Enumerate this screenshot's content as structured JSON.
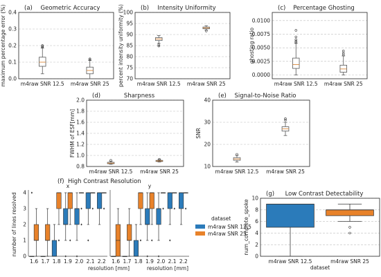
{
  "chart_data": [
    {
      "id": "a",
      "type": "box",
      "panel": "(a)",
      "title": "Geometric Accuracy",
      "ylabel": "maximum percentage error (%)",
      "categories": [
        "m4raw SNR 12.5",
        "m4raw SNR 25"
      ],
      "ylim": [
        0,
        0.4
      ],
      "yticks": [
        "0.0",
        "0.1",
        "0.2",
        "0.3",
        "0.4"
      ],
      "ytick_values": [
        0,
        0.1,
        0.2,
        0.3,
        0.4
      ],
      "box_color": "#ffffff",
      "boxes": [
        {
          "q1": 0.075,
          "median": 0.1,
          "q3": 0.13,
          "whislo": 0.03,
          "whishi": 0.185,
          "fliers": [
            0.19,
            0.195,
            0.2
          ]
        },
        {
          "q1": 0.03,
          "median": 0.05,
          "q3": 0.07,
          "whislo": 0.0,
          "whishi": 0.11,
          "fliers": [
            0.115,
            0.12
          ]
        }
      ]
    },
    {
      "id": "b",
      "type": "box",
      "panel": "(b)",
      "title": "Intensity Uniformity",
      "ylabel": "percent intensity uniformity (%)",
      "categories": [
        "m4raw SNR 12.5",
        "m4raw SNR 25"
      ],
      "ylim": [
        70,
        100
      ],
      "yticks": [
        "70",
        "75",
        "80",
        "85",
        "90",
        "95",
        "100"
      ],
      "ytick_values": [
        70,
        75,
        80,
        85,
        90,
        95,
        100
      ],
      "box_color": "#ffffff",
      "boxes": [
        {
          "q1": 87.3,
          "median": 88.0,
          "q3": 88.6,
          "whislo": 86.0,
          "whishi": 89.5,
          "fliers": [
            85.3,
            84.8
          ]
        },
        {
          "q1": 92.6,
          "median": 93.0,
          "q3": 93.4,
          "whislo": 92.0,
          "whishi": 94.0,
          "fliers": [
            91.6
          ]
        }
      ]
    },
    {
      "id": "c",
      "type": "box",
      "panel": "(c)",
      "title": "Percentage Ghosting",
      "ylabel": "ghosting ratio",
      "categories": [
        "m4raw SNR 12.5",
        "m4raw SNR 25"
      ],
      "ylim": [
        -0.0007,
        0.0115
      ],
      "yticks": [
        "0.0000",
        "0.0025",
        "0.0050",
        "0.0075",
        "0.0100"
      ],
      "ytick_values": [
        0,
        0.0025,
        0.005,
        0.0075,
        0.01
      ],
      "box_color": "#ffffff",
      "boxes": [
        {
          "q1": 0.0012,
          "median": 0.0019,
          "q3": 0.0031,
          "whislo": 0.0,
          "whishi": 0.0058,
          "fliers": [
            0.006,
            0.0062,
            0.0065,
            0.007,
            0.0082
          ]
        },
        {
          "q1": 0.0005,
          "median": 0.0011,
          "q3": 0.0018,
          "whislo": 0.0,
          "whishi": 0.0035,
          "fliers": [
            0.0037,
            0.004,
            0.0044
          ]
        }
      ]
    },
    {
      "id": "d",
      "type": "box",
      "panel": "(d)",
      "title": "Sharpness",
      "ylabel": "FWHM of ESF[mm]",
      "categories": [
        "m4raw SNR 12.5",
        "m4raw SNR 25"
      ],
      "ylim": [
        0.8,
        2.0
      ],
      "yticks": [
        "0.8",
        "1.0",
        "1.2",
        "1.4",
        "1.6",
        "1.8",
        "2.0"
      ],
      "ytick_values": [
        0.8,
        1.0,
        1.2,
        1.4,
        1.6,
        1.8,
        2.0
      ],
      "box_color": "#ffffff",
      "boxes": [
        {
          "q1": 0.85,
          "median": 0.86,
          "q3": 0.875,
          "whislo": 0.84,
          "whishi": 0.895,
          "fliers": [
            0.91
          ]
        },
        {
          "q1": 0.89,
          "median": 0.9,
          "q3": 0.91,
          "whislo": 0.88,
          "whishi": 0.925,
          "fliers": [
            0.93
          ]
        }
      ]
    },
    {
      "id": "e",
      "type": "box",
      "panel": "(e)",
      "title": "Signal-to-Noise Ratio",
      "ylabel": "SNR",
      "categories": [
        "m4raw SNR 12.5",
        "m4raw SNR 25"
      ],
      "ylim": [
        10,
        40
      ],
      "yticks": [
        "10",
        "20",
        "30",
        "40"
      ],
      "ytick_values": [
        10,
        20,
        30,
        40
      ],
      "box_color": "#ffffff",
      "boxes": [
        {
          "q1": 12.8,
          "median": 13.4,
          "q3": 14.0,
          "whislo": 12.0,
          "whishi": 15.0,
          "fliers": [
            15.5
          ]
        },
        {
          "q1": 26.0,
          "median": 27.0,
          "q3": 28.0,
          "whislo": 24.0,
          "whishi": 30.0,
          "fliers": [
            31.0,
            31.6
          ]
        }
      ]
    },
    {
      "id": "f",
      "type": "box-grouped",
      "panel": "(f)",
      "title": "High Contrast Resolution",
      "subplots": [
        {
          "subtitle": "x",
          "categories": [
            "1.6",
            "1.7",
            "1.8",
            "1.9",
            "2.0",
            "2.1",
            "2.2"
          ],
          "series": [
            {
              "name": "m4raw SNR 12.5",
              "color": "#2b7bba",
              "boxes": [
                {
                  "q1": 0,
                  "median": 0,
                  "q3": 0,
                  "whislo": 0,
                  "whishi": 0,
                  "fliers": [
                    4
                  ]
                },
                {
                  "q1": 0,
                  "median": 0,
                  "q3": 0,
                  "whislo": 0,
                  "whishi": 0,
                  "fliers": []
                },
                {
                  "q1": 0,
                  "median": 0,
                  "q3": 1,
                  "whislo": 0,
                  "whishi": 2,
                  "fliers": []
                },
                {
                  "q1": 2,
                  "median": 2,
                  "q3": 3,
                  "whislo": 1,
                  "whishi": 4,
                  "fliers": [
                    0
                  ]
                },
                {
                  "q1": 2,
                  "median": 3,
                  "q3": 3,
                  "whislo": 1,
                  "whishi": 4,
                  "fliers": [
                    0
                  ]
                },
                {
                  "q1": 3,
                  "median": 4,
                  "q3": 4,
                  "whislo": 2,
                  "whishi": 4,
                  "fliers": [
                    1
                  ]
                },
                {
                  "q1": 3,
                  "median": 4,
                  "q3": 4,
                  "whislo": 2,
                  "whishi": 4,
                  "fliers": []
                }
              ]
            },
            {
              "name": "m4raw SNR 25",
              "color": "#e8822a",
              "boxes": [
                {
                  "q1": 1,
                  "median": 1,
                  "q3": 2,
                  "whislo": 0,
                  "whishi": 3,
                  "fliers": []
                },
                {
                  "q1": 1,
                  "median": 1,
                  "q3": 2,
                  "whislo": 0,
                  "whishi": 3,
                  "fliers": []
                },
                {
                  "q1": 3,
                  "median": 4,
                  "q3": 4,
                  "whislo": 2,
                  "whishi": 4,
                  "fliers": [
                    1
                  ]
                },
                {
                  "q1": 3,
                  "median": 4,
                  "q3": 4,
                  "whislo": 2,
                  "whishi": 4,
                  "fliers": [
                    1
                  ]
                },
                {
                  "q1": 4,
                  "median": 4,
                  "q3": 4,
                  "whislo": 4,
                  "whishi": 4,
                  "fliers": [
                    3,
                    2
                  ]
                },
                {
                  "q1": 4,
                  "median": 4,
                  "q3": 4,
                  "whislo": 4,
                  "whishi": 4,
                  "fliers": [
                    3
                  ]
                },
                {
                  "q1": 4,
                  "median": 4,
                  "q3": 4,
                  "whislo": 4,
                  "whishi": 4,
                  "fliers": [
                    3
                  ]
                }
              ]
            }
          ]
        },
        {
          "subtitle": "y",
          "categories": [
            "1.6",
            "1.7",
            "1.8",
            "1.9",
            "2.0",
            "2.1",
            "2.2"
          ],
          "series": [
            {
              "name": "m4raw SNR 12.5",
              "color": "#2b7bba",
              "boxes": [
                {
                  "q1": 0,
                  "median": 0,
                  "q3": 0,
                  "whislo": 0,
                  "whishi": 0,
                  "fliers": []
                },
                {
                  "q1": 0,
                  "median": 0,
                  "q3": 0,
                  "whislo": 0,
                  "whishi": 0,
                  "fliers": []
                },
                {
                  "q1": 0,
                  "median": 0,
                  "q3": 1,
                  "whislo": 0,
                  "whishi": 2,
                  "fliers": []
                },
                {
                  "q1": 2,
                  "median": 2,
                  "q3": 3,
                  "whislo": 1,
                  "whishi": 4,
                  "fliers": [
                    0
                  ]
                },
                {
                  "q1": 2,
                  "median": 3,
                  "q3": 3,
                  "whislo": 1,
                  "whishi": 4,
                  "fliers": [
                    0
                  ]
                },
                {
                  "q1": 3,
                  "median": 4,
                  "q3": 4,
                  "whislo": 2,
                  "whishi": 4,
                  "fliers": [
                    1
                  ]
                },
                {
                  "q1": 3,
                  "median": 4,
                  "q3": 4,
                  "whislo": 2,
                  "whishi": 4,
                  "fliers": []
                }
              ]
            },
            {
              "name": "m4raw SNR 25",
              "color": "#e8822a",
              "boxes": [
                {
                  "q1": 0,
                  "median": 1,
                  "q3": 2,
                  "whislo": 0,
                  "whishi": 3,
                  "fliers": []
                },
                {
                  "q1": 1,
                  "median": 1,
                  "q3": 2,
                  "whislo": 0,
                  "whishi": 3,
                  "fliers": []
                },
                {
                  "q1": 3,
                  "median": 4,
                  "q3": 4,
                  "whislo": 2,
                  "whishi": 4,
                  "fliers": [
                    1
                  ]
                },
                {
                  "q1": 3,
                  "median": 4,
                  "q3": 4,
                  "whislo": 2,
                  "whishi": 4,
                  "fliers": [
                    1
                  ]
                },
                {
                  "q1": 4,
                  "median": 4,
                  "q3": 4,
                  "whislo": 4,
                  "whishi": 4,
                  "fliers": [
                    3
                  ]
                },
                {
                  "q1": 4,
                  "median": 4,
                  "q3": 4,
                  "whislo": 4,
                  "whishi": 4,
                  "fliers": [
                    3
                  ]
                },
                {
                  "q1": 4,
                  "median": 4,
                  "q3": 4,
                  "whislo": 4,
                  "whishi": 4,
                  "fliers": [
                    3
                  ]
                }
              ]
            }
          ]
        }
      ],
      "ylabel": "number of lines resolved",
      "xlabel": "resolution [mm]",
      "ylim": [
        0,
        4
      ],
      "yticks": [
        "0",
        "1",
        "2",
        "3",
        "4"
      ],
      "ytick_values": [
        0,
        1,
        2,
        3,
        4
      ],
      "legend": {
        "title": "dataset",
        "entries": [
          "m4raw SNR 12.5",
          "m4raw SNR 25"
        ],
        "placement": "right"
      }
    },
    {
      "id": "g",
      "type": "box",
      "panel": "(g)",
      "title": "Low Contrast Detectability",
      "ylabel": "num_complete_spoke",
      "xlabel": "dataset",
      "categories": [
        "m4raw SNR 12.5",
        "m4raw SNR 25"
      ],
      "ylim": [
        0,
        10
      ],
      "yticks": [
        "0",
        "2",
        "4",
        "6",
        "8",
        "10"
      ],
      "ytick_values": [
        0,
        2,
        4,
        6,
        8,
        10
      ],
      "boxes": [
        {
          "q1": 5,
          "median": 9,
          "q3": 9,
          "whislo": 0,
          "whishi": 9,
          "fliers": [],
          "color": "#2b7bba"
        },
        {
          "q1": 7,
          "median": 8,
          "q3": 8,
          "whislo": 6,
          "whishi": 9,
          "fliers": [
            5,
            4
          ],
          "color": "#e8822a"
        }
      ]
    }
  ]
}
